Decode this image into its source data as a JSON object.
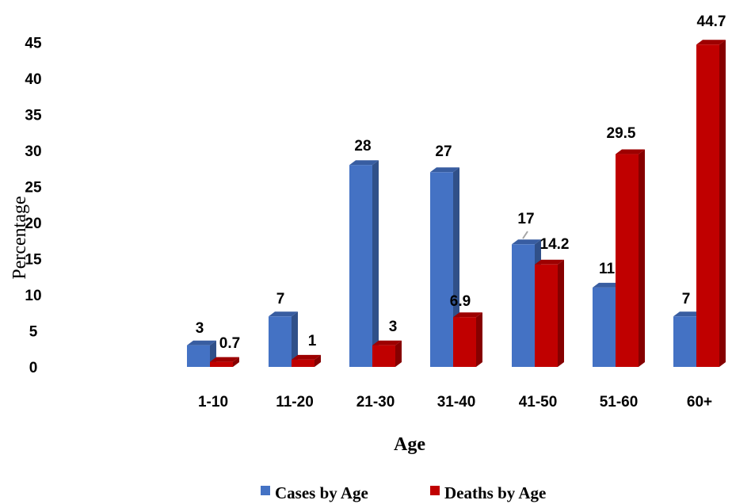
{
  "chart_data": {
    "type": "bar",
    "categories": [
      "1-10",
      "11-20",
      "21-30",
      "31-40",
      "41-50",
      "51-60",
      "60+"
    ],
    "series": [
      {
        "name": "Cases by Age",
        "values": [
          3,
          7,
          28,
          27,
          17,
          11,
          7
        ],
        "color": "#4472C4"
      },
      {
        "name": "Deaths by Age",
        "values": [
          0.7,
          1,
          3,
          6.9,
          14.2,
          29.5,
          44.7
        ],
        "color": "#C00000"
      }
    ],
    "data_labels": {
      "Cases by Age": [
        "3",
        "7",
        "28",
        "27",
        "17",
        "11",
        "7"
      ],
      "Deaths by Age": [
        "0.7",
        "1",
        "3",
        "6.9",
        "14.2",
        "29.5",
        "44.7"
      ]
    },
    "yticks": [
      0,
      5,
      10,
      15,
      20,
      25,
      30,
      35,
      40,
      45
    ],
    "ylim": [
      0,
      45
    ],
    "xlabel": "Age",
    "ylabel": "Percentage",
    "legend_position": "bottom",
    "grid": false,
    "style": "3d-column"
  }
}
